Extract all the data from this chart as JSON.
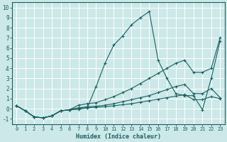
{
  "xlabel": "Humidex (Indice chaleur)",
  "ylabel": "",
  "xlim": [
    -0.5,
    23.5
  ],
  "ylim": [
    -1.5,
    10.5
  ],
  "xticks": [
    0,
    1,
    2,
    3,
    4,
    5,
    6,
    7,
    8,
    9,
    10,
    11,
    12,
    13,
    14,
    15,
    16,
    17,
    18,
    19,
    20,
    21,
    22,
    23
  ],
  "yticks": [
    -1,
    0,
    1,
    2,
    3,
    4,
    5,
    6,
    7,
    8,
    9,
    10
  ],
  "background_color": "#cce8e8",
  "grid_color": "#ffffff",
  "line_color": "#1a6060",
  "lines": [
    {
      "x": [
        0,
        1,
        2,
        3,
        4,
        5,
        6,
        7,
        8,
        9,
        10,
        11,
        12,
        13,
        14,
        15,
        16,
        17,
        18,
        19,
        20,
        21,
        22,
        23
      ],
      "y": [
        0.3,
        -0.2,
        -0.8,
        -0.9,
        -0.7,
        -0.2,
        -0.1,
        -0.05,
        0.1,
        2.2,
        4.5,
        6.3,
        7.2,
        8.3,
        9.0,
        9.6,
        4.8,
        3.0,
        1.5,
        1.3,
        1.3,
        -0.1,
        3.0,
        6.7
      ]
    },
    {
      "x": [
        0,
        1,
        2,
        3,
        4,
        5,
        6,
        7,
        8,
        9,
        10,
        11,
        12,
        13,
        14,
        15,
        16,
        17,
        18,
        19,
        20,
        21,
        22,
        23
      ],
      "y": [
        0.3,
        -0.2,
        -0.8,
        -0.9,
        -0.7,
        -0.2,
        -0.1,
        0.35,
        0.5,
        0.6,
        0.9,
        1.2,
        1.6,
        2.0,
        2.5,
        3.0,
        3.5,
        4.0,
        4.5,
        4.8,
        3.6,
        3.6,
        4.0,
        7.0
      ]
    },
    {
      "x": [
        0,
        1,
        2,
        3,
        4,
        5,
        6,
        7,
        8,
        9,
        10,
        11,
        12,
        13,
        14,
        15,
        16,
        17,
        18,
        19,
        20,
        21,
        22,
        23
      ],
      "y": [
        0.3,
        -0.2,
        -0.8,
        -0.9,
        -0.7,
        -0.2,
        -0.1,
        0.1,
        0.2,
        0.25,
        0.35,
        0.5,
        0.7,
        0.9,
        1.1,
        1.3,
        1.6,
        1.9,
        2.2,
        2.4,
        1.5,
        1.5,
        2.0,
        1.1
      ]
    },
    {
      "x": [
        0,
        1,
        2,
        3,
        4,
        5,
        6,
        7,
        8,
        9,
        10,
        11,
        12,
        13,
        14,
        15,
        16,
        17,
        18,
        19,
        20,
        21,
        22,
        23
      ],
      "y": [
        0.3,
        -0.2,
        -0.8,
        -0.9,
        -0.7,
        -0.2,
        -0.1,
        0.05,
        0.1,
        0.15,
        0.2,
        0.3,
        0.4,
        0.5,
        0.65,
        0.8,
        0.95,
        1.1,
        1.25,
        1.4,
        0.9,
        0.9,
        1.2,
        1.0
      ]
    }
  ]
}
